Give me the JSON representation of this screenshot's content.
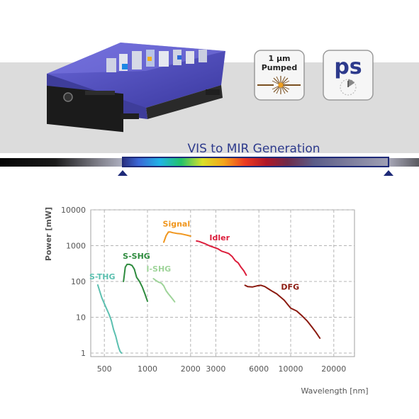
{
  "header": {
    "badge_pumped": {
      "line1": "1 µm",
      "line2": "Pumped"
    },
    "badge_pulse": {
      "label": "ps"
    },
    "banner_title": "VIS to MIR Generation"
  },
  "colors": {
    "band": "#dcdcdc",
    "banner_title": "#2d3a8c",
    "spectrum_frame": "#1e2a78",
    "laser_body": "#4a48b8",
    "grid": "#b4b4b4",
    "axis_text": "#555555"
  },
  "chart_data": {
    "type": "line",
    "title": "",
    "xlabel": "Wavelength [nm]",
    "ylabel": "Power [mW]",
    "xscale": "log",
    "yscale": "log",
    "xlim": [
      420,
      26000
    ],
    "ylim": [
      0.8,
      10000
    ],
    "xticks": [
      500,
      1000,
      2000,
      3000,
      6000,
      10000,
      20000
    ],
    "xtick_labels": [
      "500",
      "1000",
      "2000",
      "3000",
      "6000",
      "10000",
      "20000"
    ],
    "yticks": [
      1,
      10,
      100,
      1000,
      10000
    ],
    "ytick_labels": [
      "1",
      "10",
      "100",
      "1000",
      "10000"
    ],
    "grid": true,
    "series": [
      {
        "name": "S-THG",
        "color": "#5cc0b0",
        "x": [
          450,
          480,
          510,
          540,
          560,
          580,
          600,
          615,
          630,
          645,
          660
        ],
        "y": [
          80,
          35,
          20,
          12,
          8,
          4.5,
          3,
          2,
          1.4,
          1.1,
          1.0
        ]
      },
      {
        "name": "S-SHG",
        "color": "#2e8b3e",
        "x": [
          680,
          700,
          720,
          750,
          780,
          810,
          840,
          880,
          920,
          960,
          1000
        ],
        "y": [
          100,
          250,
          300,
          300,
          280,
          220,
          130,
          100,
          70,
          45,
          28
        ]
      },
      {
        "name": "I-SHG",
        "color": "#9fd49a",
        "x": [
          1100,
          1150,
          1200,
          1250,
          1300,
          1350,
          1400,
          1450,
          1500,
          1550
        ],
        "y": [
          120,
          105,
          95,
          90,
          75,
          55,
          45,
          38,
          32,
          27
        ]
      },
      {
        "name": "Signal",
        "color": "#f0961e",
        "x": [
          1300,
          1350,
          1400,
          1450,
          1500,
          1600,
          1700,
          1800,
          1900,
          2000
        ],
        "y": [
          1250,
          1900,
          2400,
          2400,
          2300,
          2200,
          2150,
          2050,
          1950,
          1850
        ]
      },
      {
        "name": "Idler",
        "color": "#dc1e3c",
        "x": [
          2200,
          2300,
          2500,
          2700,
          2900,
          3100,
          3300,
          3500,
          3700,
          3900,
          4100,
          4300,
          4500,
          4700,
          4900
        ],
        "y": [
          1350,
          1300,
          1150,
          1000,
          900,
          820,
          700,
          650,
          600,
          500,
          380,
          330,
          250,
          200,
          150
        ]
      },
      {
        "name": "DFG",
        "color": "#8b1a10",
        "x": [
          4800,
          5000,
          5400,
          5800,
          6200,
          6600,
          7000,
          7500,
          8000,
          9000,
          10000,
          11000,
          12000,
          13000,
          14000,
          15000,
          16000
        ],
        "y": [
          78,
          72,
          70,
          75,
          78,
          72,
          62,
          52,
          45,
          30,
          18,
          15,
          11,
          8,
          5.5,
          3.8,
          2.6
        ]
      }
    ]
  }
}
